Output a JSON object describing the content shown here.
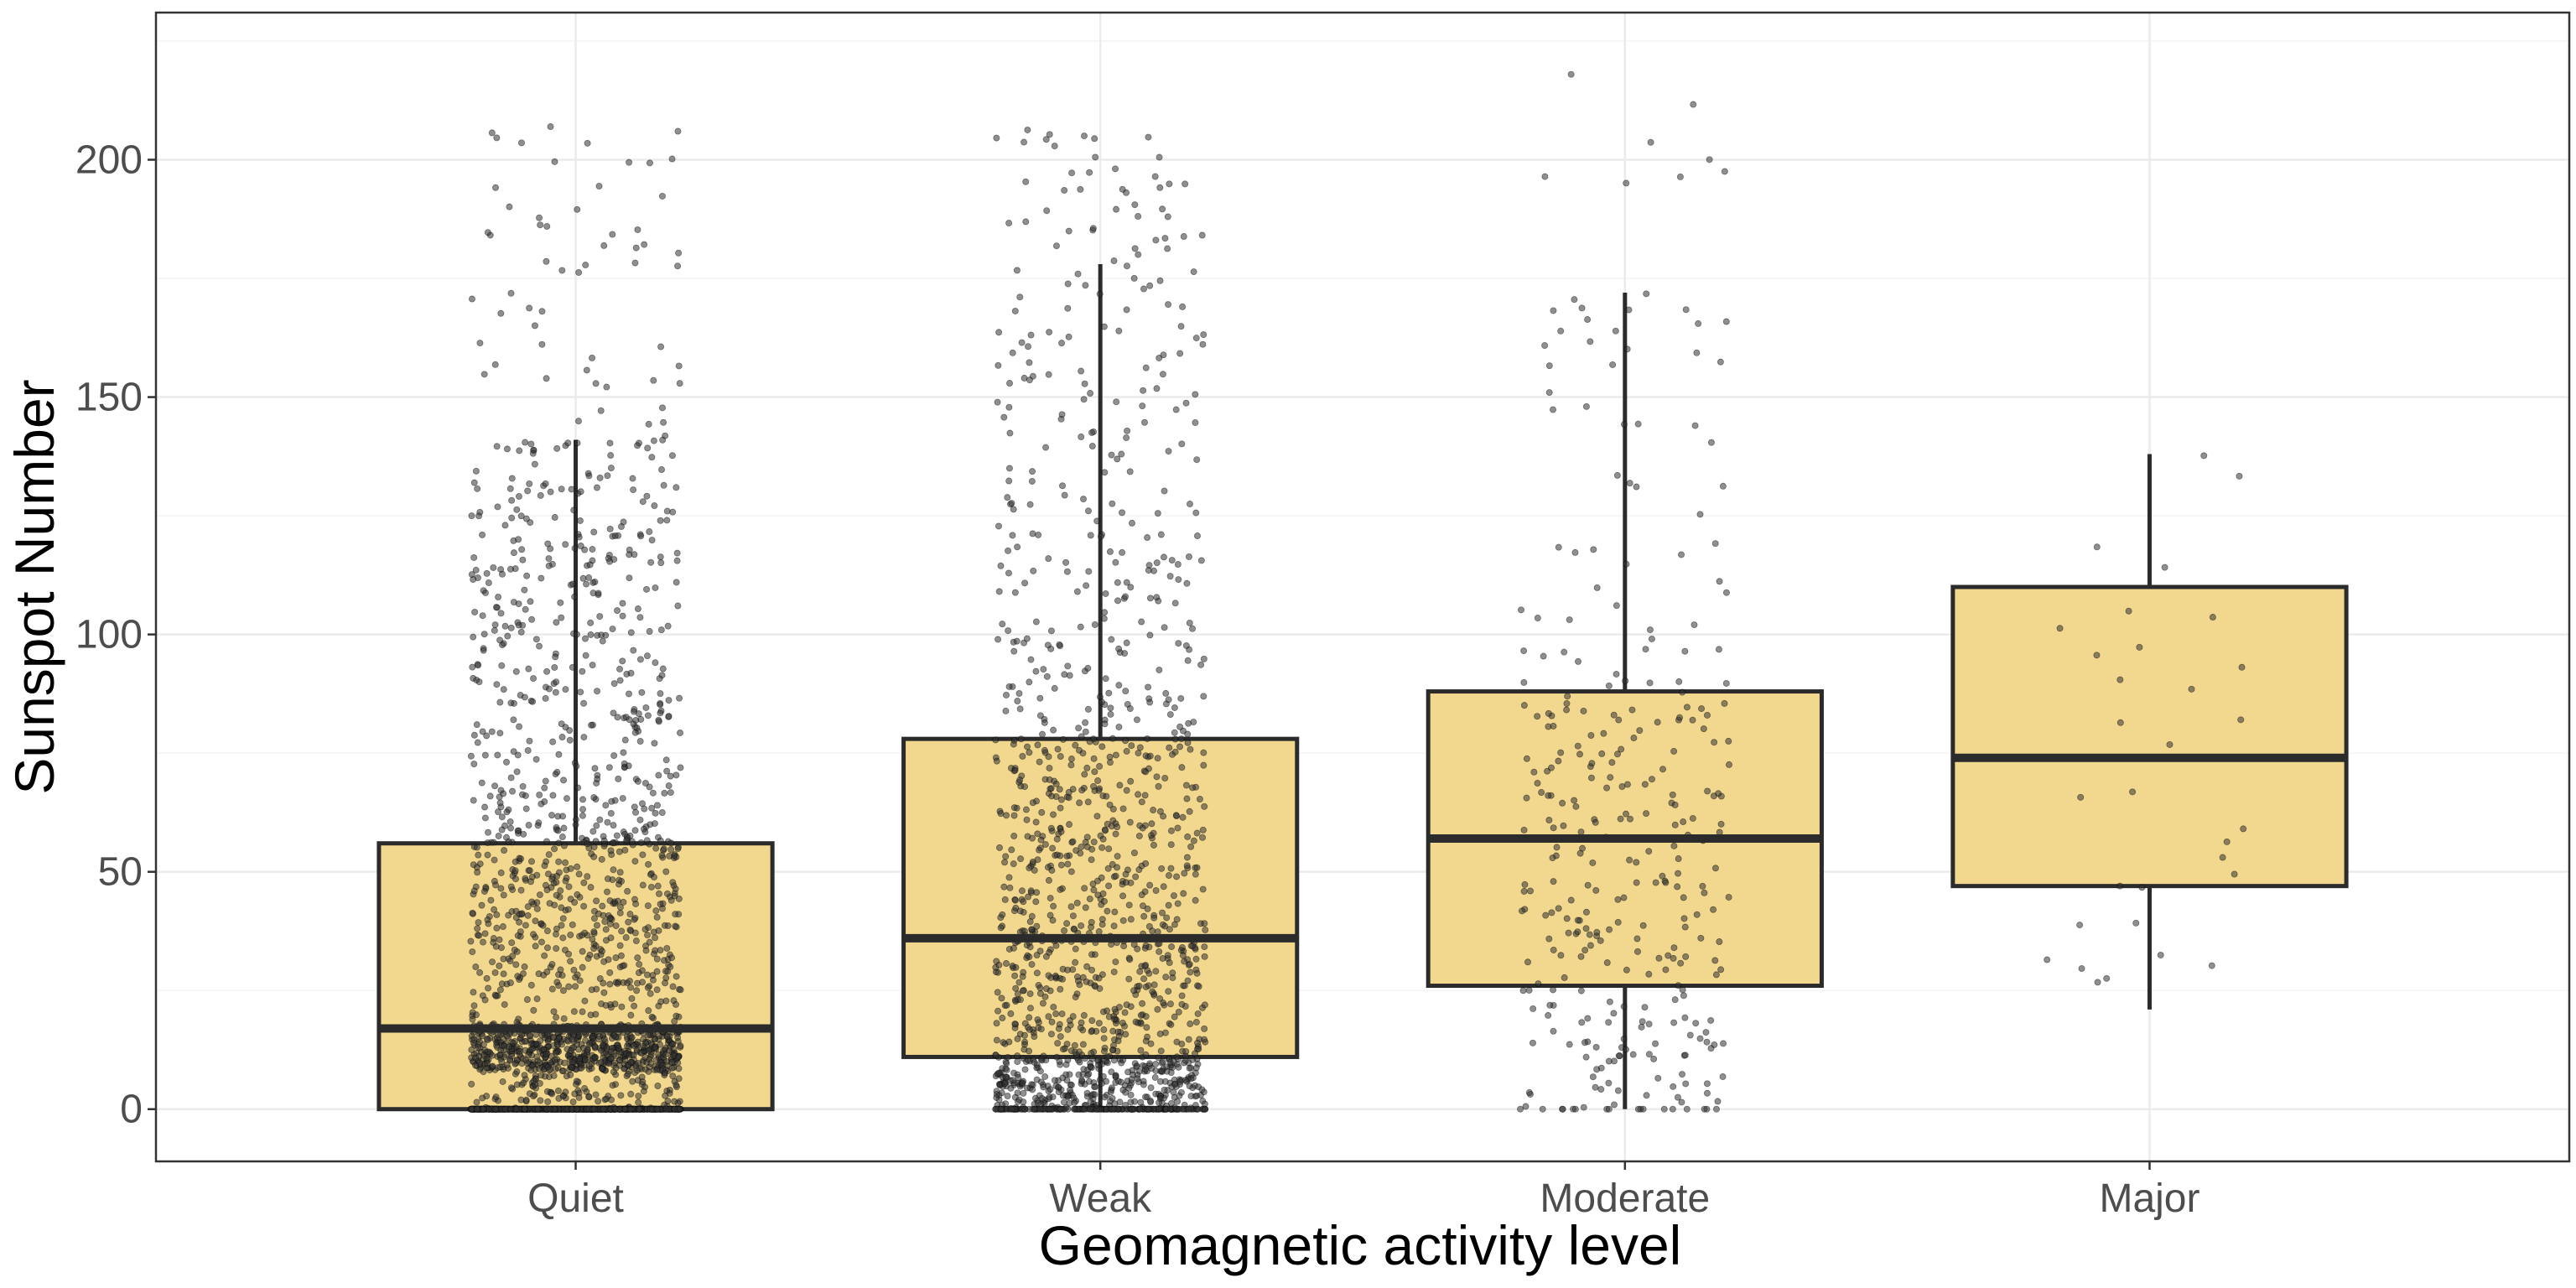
{
  "chart_data": {
    "type": "box",
    "xlabel": "Geomagnetic activity level",
    "ylabel": "Sunspot Number",
    "ylim": [
      -11,
      231
    ],
    "y_ticks": [
      0,
      50,
      100,
      150,
      200
    ],
    "grid": true,
    "categories": [
      "Quiet",
      "Weak",
      "Moderate",
      "Major"
    ],
    "boxes": [
      {
        "category": "Quiet",
        "min": 0,
        "q1": 0,
        "median": 17,
        "q3": 56,
        "whisker_high": 141,
        "n_points": 2600,
        "max_point": 207
      },
      {
        "category": "Weak",
        "min": 0,
        "q1": 11,
        "median": 36,
        "q3": 78,
        "whisker_high": 178,
        "n_points": 1500,
        "max_point": 207
      },
      {
        "category": "Moderate",
        "min": 0,
        "q1": 26,
        "median": 57,
        "q3": 88,
        "whisker_high": 172,
        "n_points": 330,
        "max_point": 220
      },
      {
        "category": "Major",
        "min": 21,
        "q1": 47,
        "median": 74,
        "q3": 110,
        "whisker_high": 138,
        "n_points": 32,
        "max_point": 138
      }
    ],
    "box_fill": "#f2d78f",
    "box_stroke": "#2b2b2b",
    "point_color": "#333333"
  }
}
